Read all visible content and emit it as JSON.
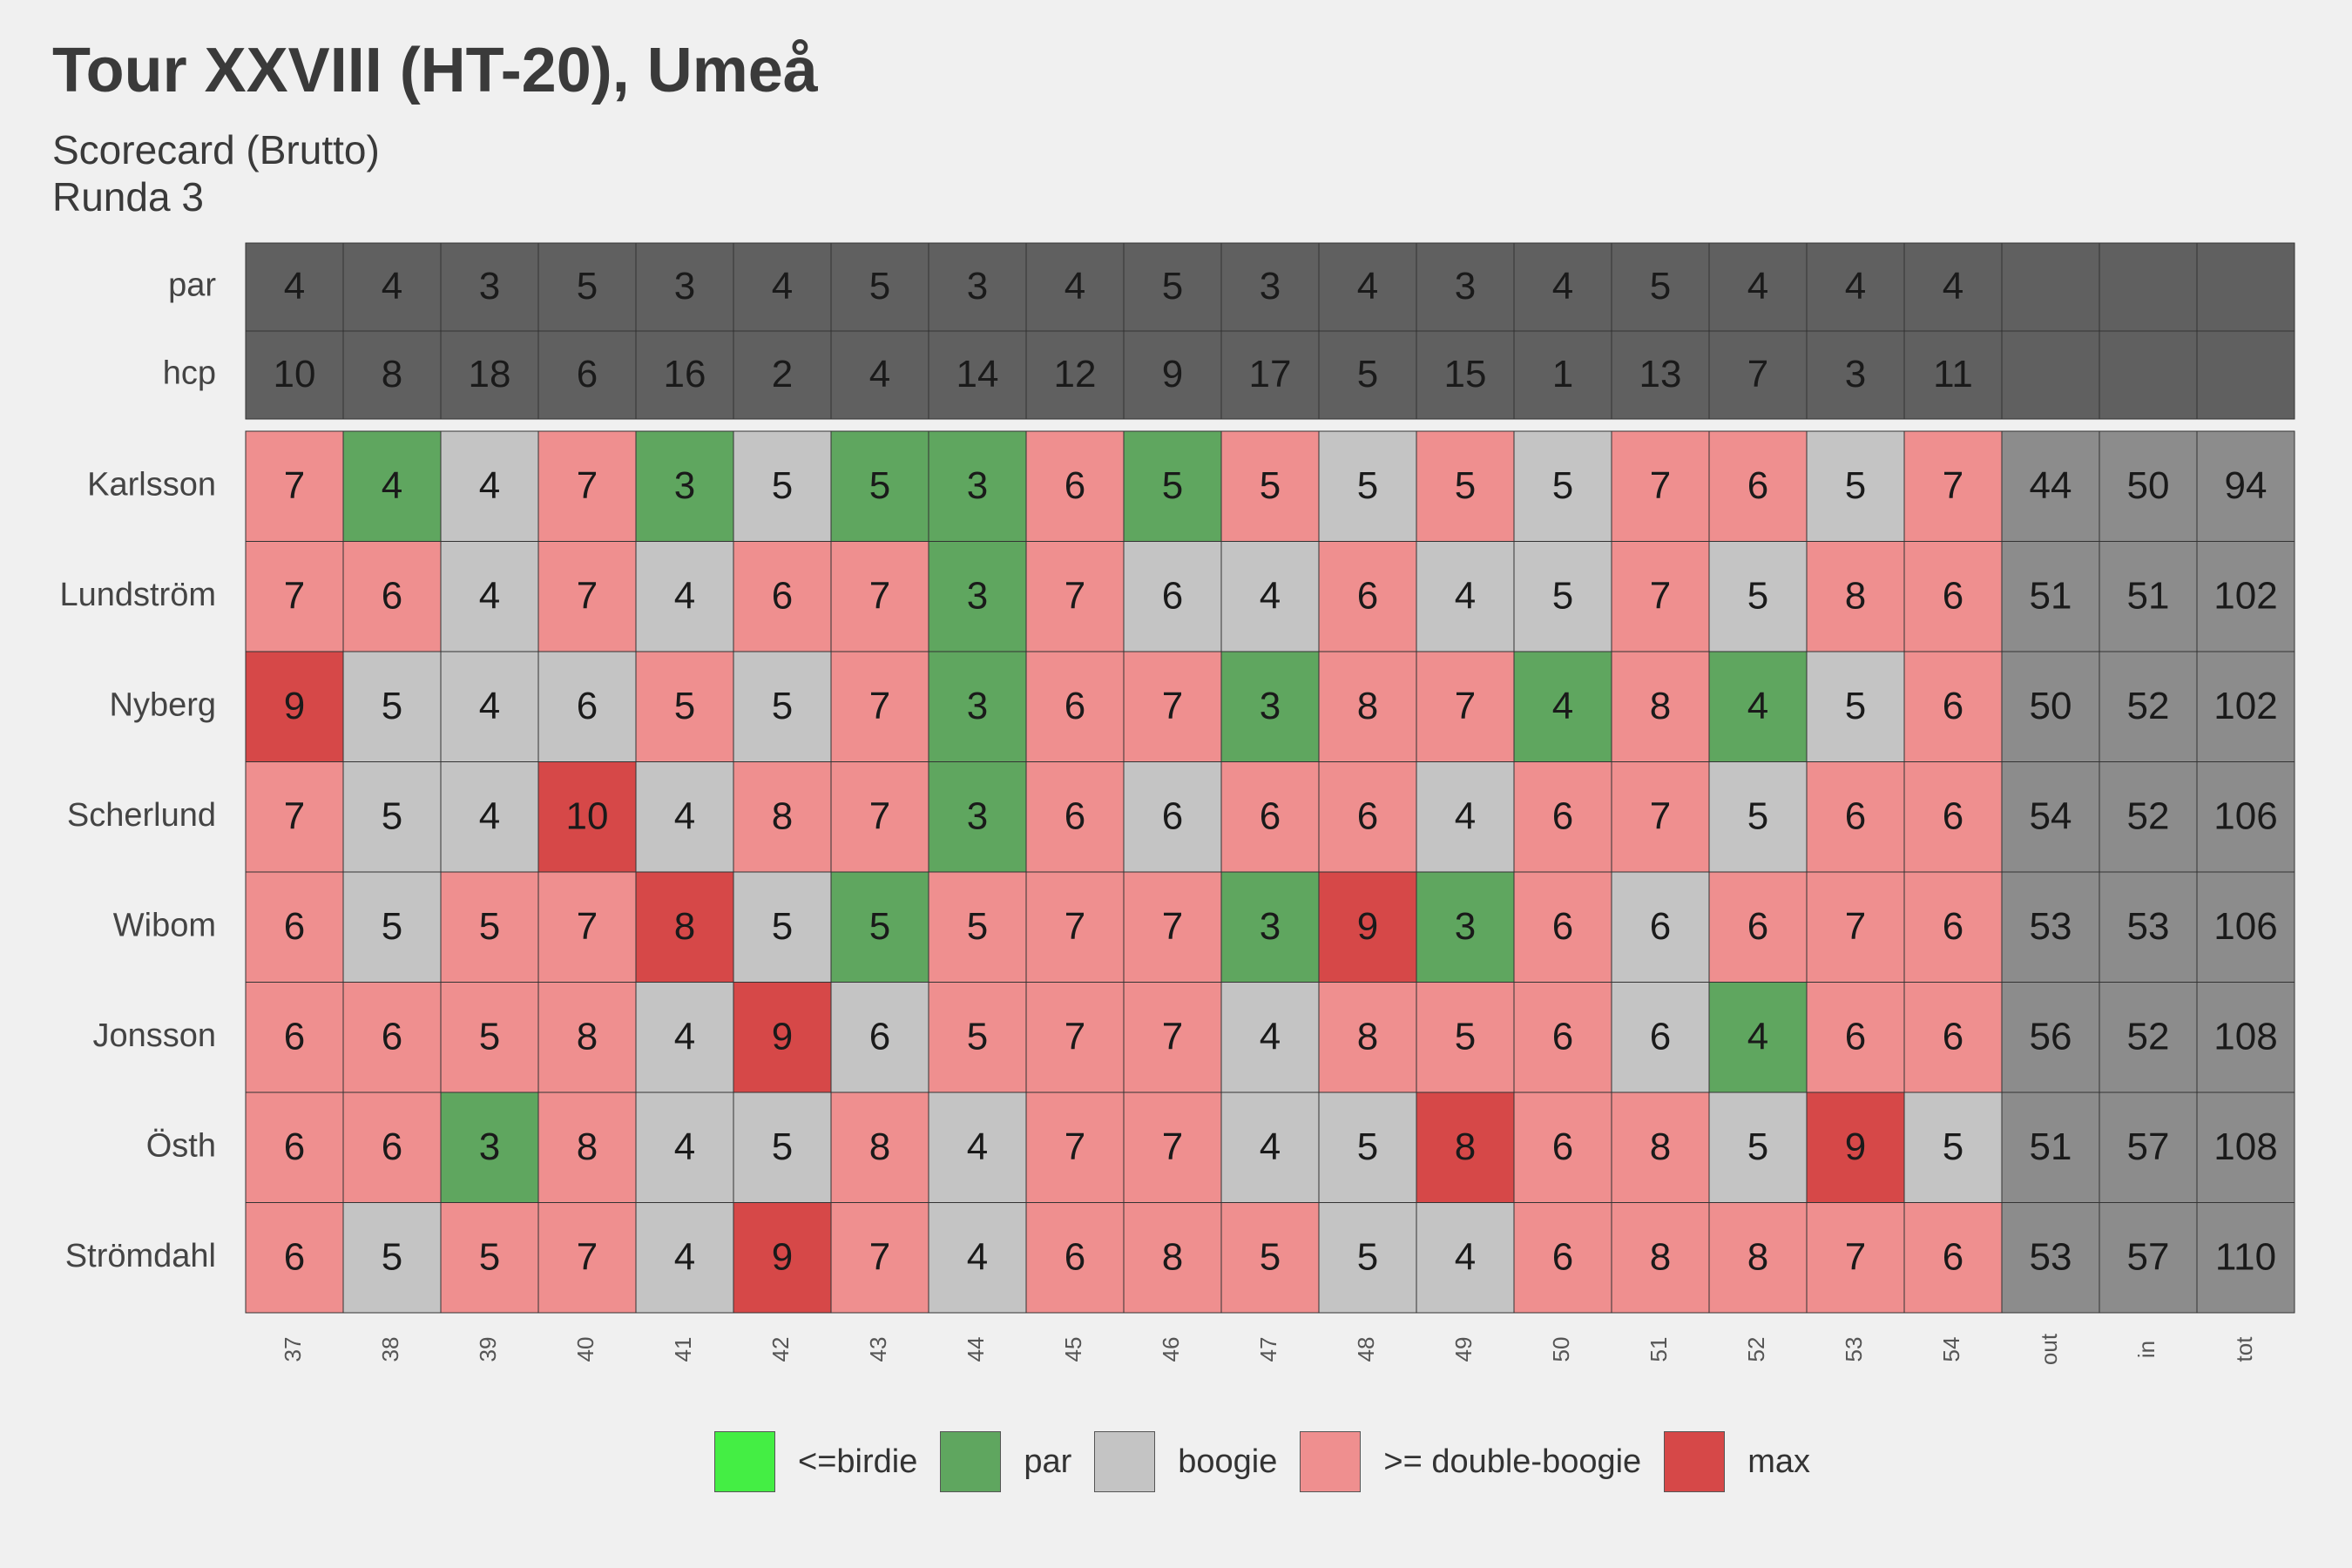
{
  "chart_data": {
    "type": "heatmap",
    "title": "Tour XXVIII (HT-20), Umeå",
    "subtitle_line1": "Scorecard (Brutto)",
    "subtitle_line2": "Runda 3",
    "columns": [
      "37",
      "38",
      "39",
      "40",
      "41",
      "42",
      "43",
      "44",
      "45",
      "46",
      "47",
      "48",
      "49",
      "50",
      "51",
      "52",
      "53",
      "54",
      "out",
      "in",
      "tot"
    ],
    "header_rows": [
      {
        "label": "par",
        "values": [
          4,
          4,
          3,
          5,
          3,
          4,
          5,
          3,
          4,
          5,
          3,
          4,
          3,
          4,
          5,
          4,
          4,
          4
        ]
      },
      {
        "label": "hcp",
        "values": [
          10,
          8,
          18,
          6,
          16,
          2,
          4,
          14,
          12,
          9,
          17,
          5,
          15,
          1,
          13,
          7,
          3,
          11
        ]
      }
    ],
    "players": [
      {
        "name": "Karlsson",
        "scores": [
          7,
          4,
          4,
          7,
          3,
          5,
          5,
          3,
          6,
          5,
          5,
          5,
          5,
          5,
          7,
          6,
          5,
          7
        ],
        "out": 44,
        "in": 50,
        "tot": 94
      },
      {
        "name": "Lundström",
        "scores": [
          7,
          6,
          4,
          7,
          4,
          6,
          7,
          3,
          7,
          6,
          4,
          6,
          4,
          5,
          7,
          5,
          8,
          6
        ],
        "out": 51,
        "in": 51,
        "tot": 102
      },
      {
        "name": "Nyberg",
        "scores": [
          9,
          5,
          4,
          6,
          5,
          5,
          7,
          3,
          6,
          7,
          3,
          8,
          7,
          4,
          8,
          4,
          5,
          6
        ],
        "out": 50,
        "in": 52,
        "tot": 102
      },
      {
        "name": "Scherlund",
        "scores": [
          7,
          5,
          4,
          10,
          4,
          8,
          7,
          3,
          6,
          6,
          6,
          6,
          4,
          6,
          7,
          5,
          6,
          6
        ],
        "out": 54,
        "in": 52,
        "tot": 106
      },
      {
        "name": "Wibom",
        "scores": [
          6,
          5,
          5,
          7,
          8,
          5,
          5,
          5,
          7,
          7,
          3,
          9,
          3,
          6,
          6,
          6,
          7,
          6
        ],
        "out": 53,
        "in": 53,
        "tot": 106
      },
      {
        "name": "Jonsson",
        "scores": [
          6,
          6,
          5,
          8,
          4,
          9,
          6,
          5,
          7,
          7,
          4,
          8,
          5,
          6,
          6,
          4,
          6,
          6
        ],
        "out": 56,
        "in": 52,
        "tot": 108
      },
      {
        "name": "Östh",
        "scores": [
          6,
          6,
          3,
          8,
          4,
          5,
          8,
          4,
          7,
          7,
          4,
          5,
          8,
          6,
          8,
          5,
          9,
          5
        ],
        "out": 51,
        "in": 57,
        "tot": 108
      },
      {
        "name": "Strömdahl",
        "scores": [
          6,
          5,
          5,
          7,
          4,
          9,
          7,
          4,
          6,
          8,
          5,
          5,
          4,
          6,
          8,
          8,
          7,
          6
        ],
        "out": 53,
        "in": 57,
        "tot": 110
      }
    ],
    "max_cells": [
      [
        2,
        0
      ],
      [
        3,
        3
      ],
      [
        4,
        4
      ],
      [
        4,
        11
      ],
      [
        5,
        5
      ],
      [
        6,
        12
      ],
      [
        6,
        16
      ],
      [
        7,
        5
      ]
    ],
    "legend": [
      {
        "key": "birdie",
        "label": "<=birdie",
        "color": "#44ee44"
      },
      {
        "key": "par",
        "label": "par",
        "color": "#5fa65f"
      },
      {
        "key": "bogey",
        "label": "boogie",
        "color": "#c4c4c4"
      },
      {
        "key": "double",
        "label": ">= double-boogie",
        "color": "#ef8f8f"
      },
      {
        "key": "max",
        "label": "max",
        "color": "#d64848"
      }
    ],
    "colors": {
      "header_bg": "#606060",
      "totals_bg": "#8c8c8c",
      "grid_line": "#333333"
    }
  }
}
